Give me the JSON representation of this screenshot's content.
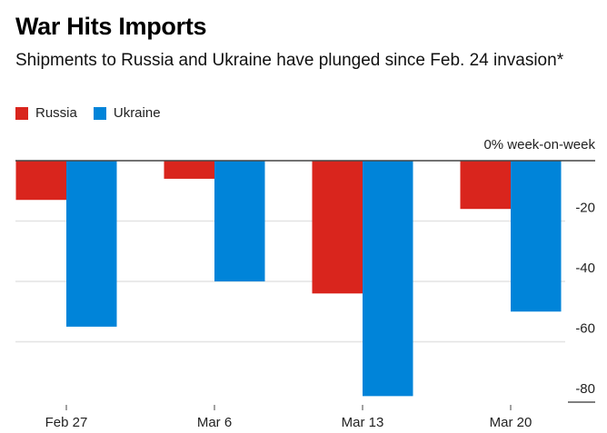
{
  "chart_data": {
    "type": "bar",
    "title": "War Hits Imports",
    "subtitle": "Shipments to Russia and Ukraine have plunged since Feb. 24 invasion*",
    "categories": [
      "Feb 27",
      "Mar 6",
      "Mar 13",
      "Mar 20"
    ],
    "series": [
      {
        "name": "Russia",
        "color": "#d9251d",
        "values": [
          -13,
          -6,
          -44,
          -16
        ]
      },
      {
        "name": "Ukraine",
        "color": "#0084d9",
        "values": [
          -55,
          -40,
          -78,
          -50
        ]
      }
    ],
    "xlabel": "",
    "ylabel": "% week-on-week",
    "ylim": [
      -80,
      0
    ],
    "yticks": [
      0,
      -20,
      -40,
      -60,
      -80
    ],
    "ytick_labels": [
      "0% week-on-week",
      "-20",
      "-40",
      "-60",
      "-80"
    ],
    "y_axis_position": "right",
    "grid": true,
    "legend": "top-left"
  }
}
